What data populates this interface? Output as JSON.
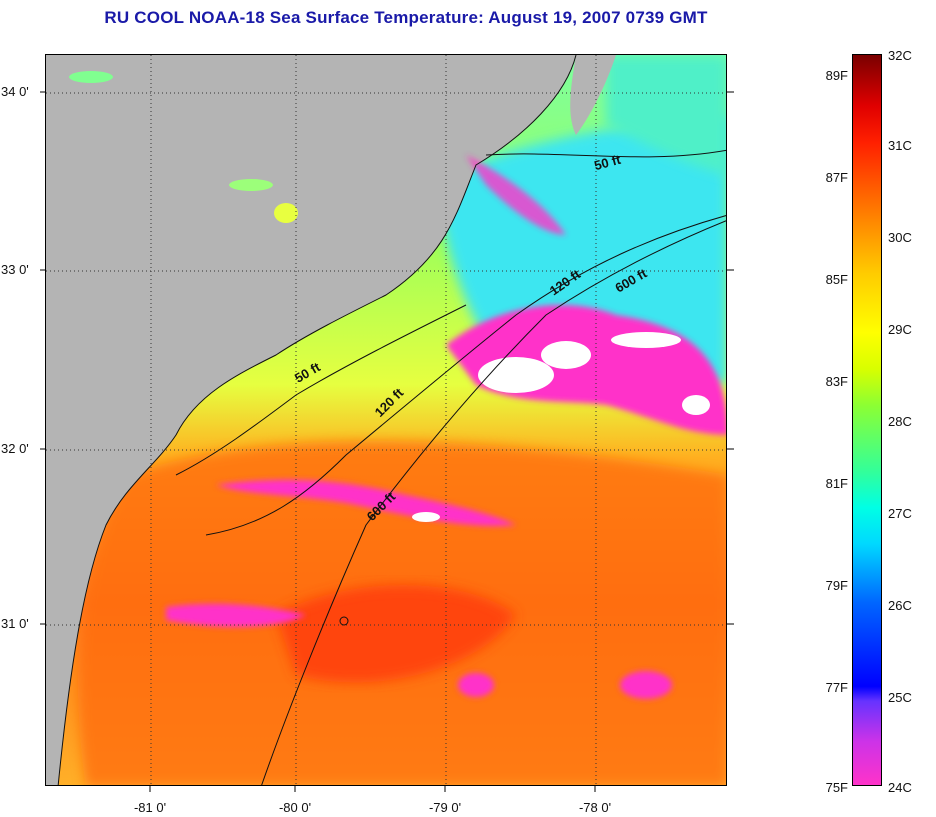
{
  "title": "RU COOL  NOAA-18  Sea Surface Temperature:  August 19, 2007 0739 GMT",
  "map": {
    "latitude_labels": [
      "34 0'",
      "33 0'",
      "32 0'",
      "31 0'"
    ],
    "longitude_labels": [
      "-81 0'",
      "-80 0'",
      "-79 0'",
      "-78 0'"
    ],
    "isobath_labels": [
      "50 ft",
      "120 ft",
      "600 ft",
      "50 ft",
      "120 ft",
      "600 ft"
    ],
    "colors": {
      "land": "#b4b4b4",
      "warm": "#ff5a10",
      "cool": "#33e8e0",
      "cloud": "#ffffff",
      "cold_edge": "#ff33c9"
    }
  },
  "colorbar": {
    "fahrenheit_labels": [
      "89F",
      "87F",
      "85F",
      "83F",
      "81F",
      "79F",
      "77F",
      "75F"
    ],
    "celsius_labels": [
      "32C",
      "31C",
      "30C",
      "29C",
      "28C",
      "27C",
      "26C",
      "25C",
      "24C"
    ]
  }
}
